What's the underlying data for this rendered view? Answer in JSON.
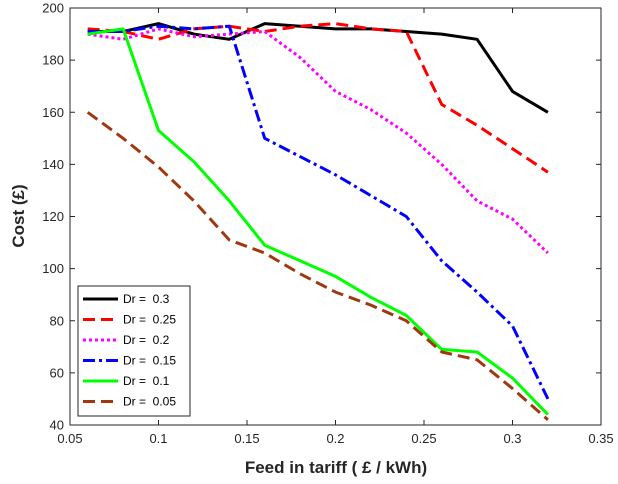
{
  "chart_data": {
    "type": "line",
    "title": "",
    "xlabel": "Feed in tariff ( £ / kWh)",
    "ylabel": "Cost  (£)",
    "xlim": [
      0.05,
      0.35
    ],
    "ylim": [
      40,
      200
    ],
    "xticks": [
      0.05,
      0.1,
      0.15,
      0.2,
      0.25,
      0.3,
      0.35
    ],
    "xtick_labels": [
      "0.05",
      "0.1",
      "0.15",
      "0.2",
      "0.25",
      "0.3",
      "0.35"
    ],
    "yticks": [
      40,
      60,
      80,
      100,
      120,
      140,
      160,
      180,
      200
    ],
    "ytick_labels": [
      "40",
      "60",
      "80",
      "100",
      "120",
      "140",
      "160",
      "180",
      "200"
    ],
    "grid": false,
    "legend_position": "bottom-left",
    "x": [
      0.06,
      0.08,
      0.1,
      0.12,
      0.14,
      0.16,
      0.18,
      0.2,
      0.22,
      0.24,
      0.26,
      0.28,
      0.3,
      0.32
    ],
    "series": [
      {
        "name": "Dr =  0.3",
        "color": "#000000",
        "dash": "solid",
        "values": [
          191,
          191,
          194,
          190,
          188,
          194,
          193,
          192,
          192,
          191,
          190,
          188,
          168,
          160
        ]
      },
      {
        "name": "Dr =  0.25",
        "color": "#ff0000",
        "dash": "dashed",
        "values": [
          192,
          191,
          188,
          192,
          193,
          191,
          193,
          194,
          192,
          191,
          163,
          155,
          146,
          137
        ]
      },
      {
        "name": "Dr =  0.2",
        "color": "#ff00ff",
        "dash": "dotted",
        "values": [
          190,
          188,
          192,
          189,
          190,
          191,
          181,
          168,
          161,
          152,
          140,
          126,
          119,
          106
        ]
      },
      {
        "name": "Dr =  0.15",
        "color": "#0000ff",
        "dash": "dashdot",
        "values": [
          191,
          191,
          193,
          192,
          193,
          150,
          143,
          136,
          128,
          120,
          103,
          91,
          78,
          50
        ]
      },
      {
        "name": "Dr =  0.1",
        "color": "#00ff00",
        "dash": "solid",
        "values": [
          190,
          192,
          153,
          141,
          126,
          109,
          103,
          97,
          89,
          82,
          69,
          68,
          58,
          44
        ]
      },
      {
        "name": "Dr =  0.05",
        "color": "#a0380f",
        "dash": "dashed",
        "values": [
          160,
          150,
          139,
          126,
          111,
          106,
          98,
          91,
          86,
          80,
          68,
          65,
          54,
          42
        ]
      }
    ]
  }
}
